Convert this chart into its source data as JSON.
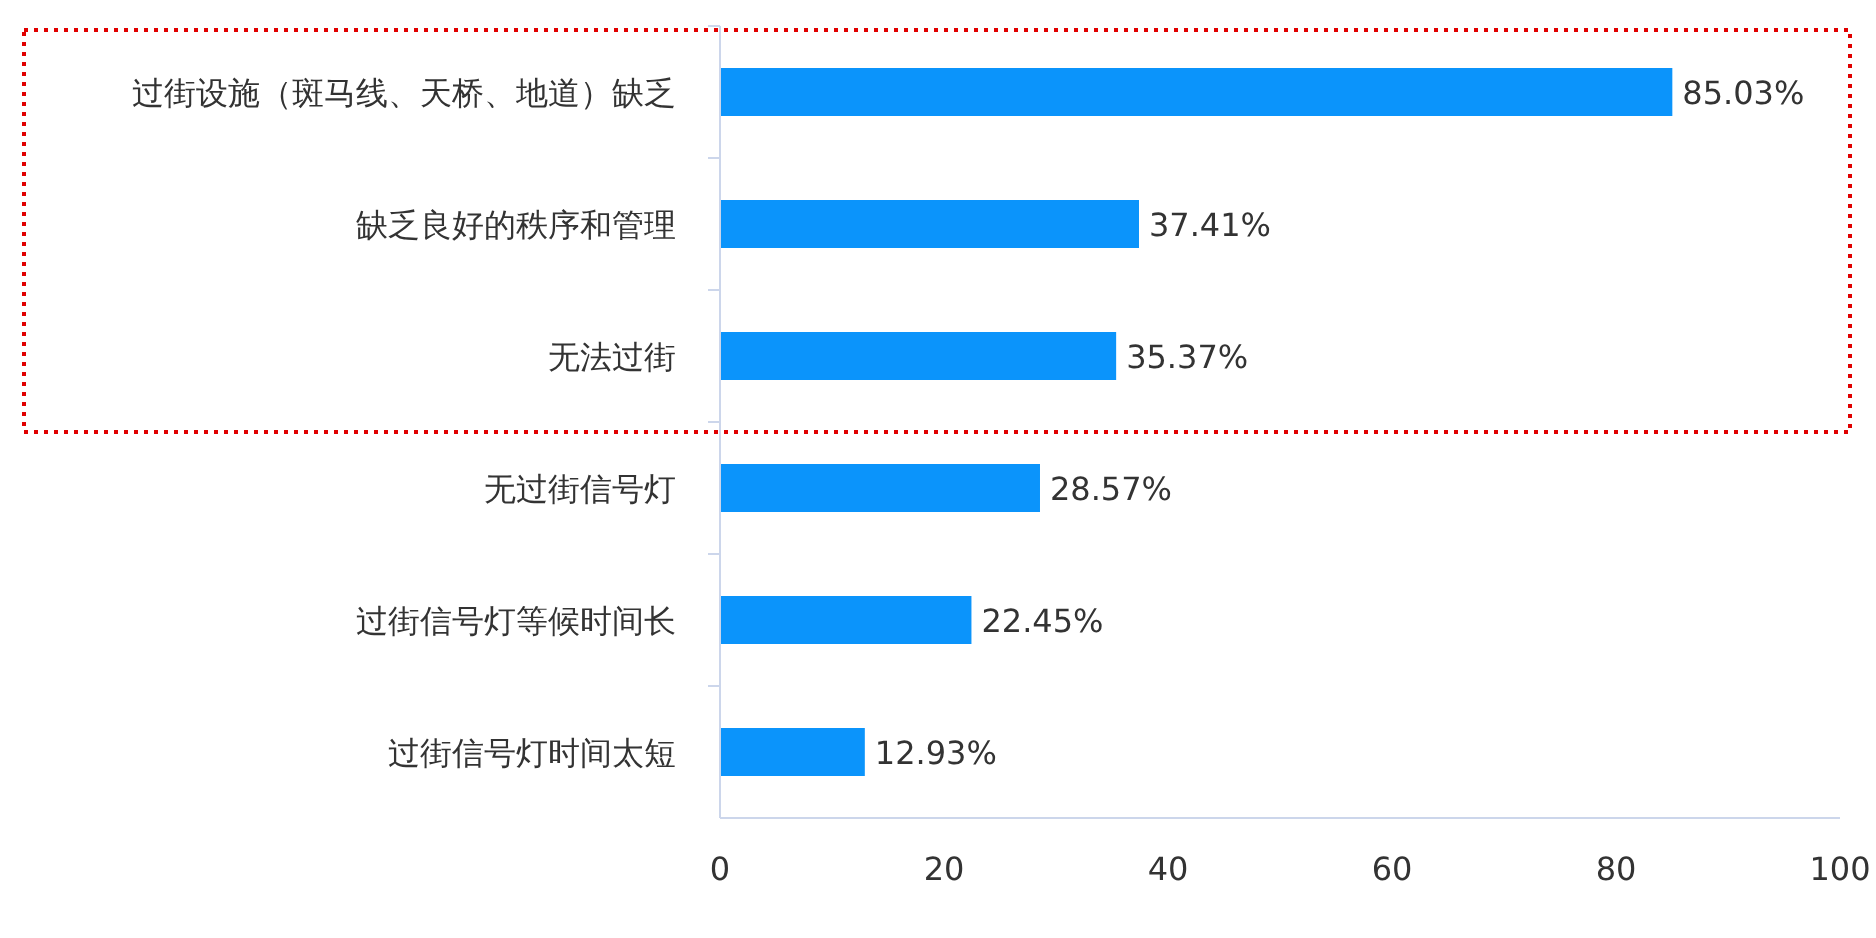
{
  "chart_data": {
    "type": "bar",
    "orientation": "horizontal",
    "categories": [
      "过街设施（斑马线、天桥、地道）缺乏",
      "缺乏良好的秩序和管理",
      "无法过街",
      "无过街信号灯",
      "过街信号灯等候时间长",
      "过街信号灯时间太短"
    ],
    "values": [
      85.03,
      37.41,
      35.37,
      28.57,
      22.45,
      12.93
    ],
    "value_labels": [
      "85.03%",
      "37.41%",
      "35.37%",
      "28.57%",
      "22.45%",
      "12.93%"
    ],
    "color": "#0b94fb",
    "xlim": [
      0,
      100
    ],
    "xticks": [
      0,
      20,
      40,
      60,
      80,
      100
    ],
    "grid": false
  }
}
